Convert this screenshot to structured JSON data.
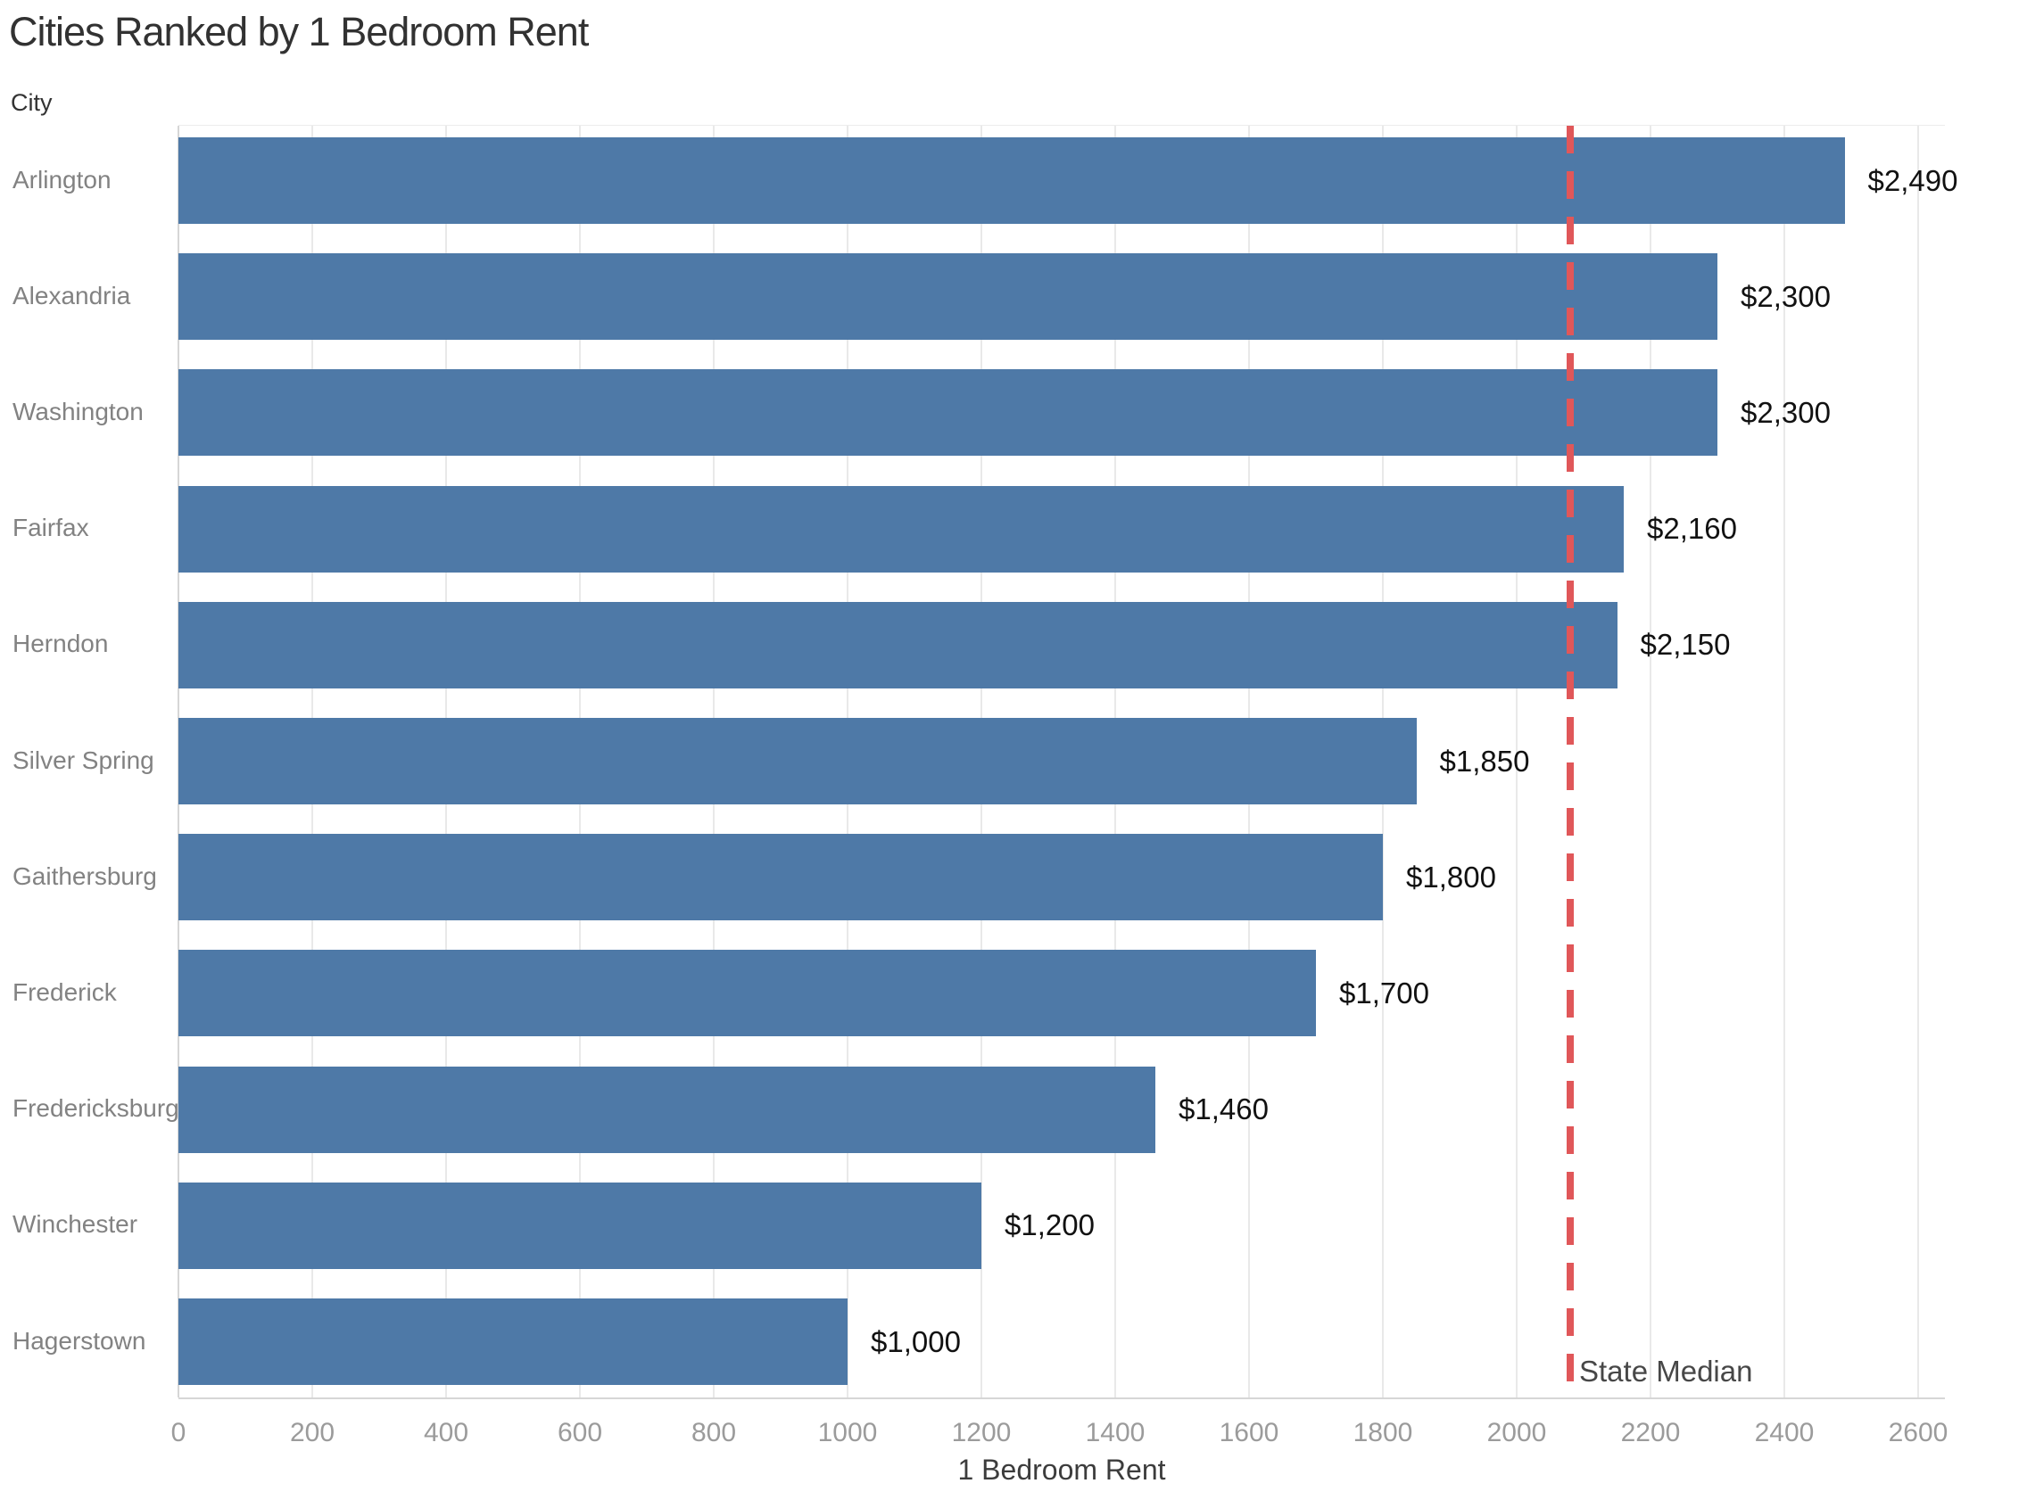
{
  "chart_data": {
    "type": "bar",
    "orientation": "horizontal",
    "title": "Cities Ranked by 1 Bedroom Rent",
    "ylabel": "City",
    "xlabel": "1 Bedroom Rent",
    "categories": [
      "Arlington",
      "Alexandria",
      "Washington",
      "Fairfax",
      "Herndon",
      "Silver Spring",
      "Gaithersburg",
      "Frederick",
      "Fredericksburg",
      "Winchester",
      "Hagerstown"
    ],
    "values": [
      2490,
      2300,
      2300,
      2160,
      2150,
      1850,
      1800,
      1700,
      1460,
      1200,
      1000
    ],
    "value_labels": [
      "$2,490",
      "$2,300",
      "$2,300",
      "$2,160",
      "$2,150",
      "$1,850",
      "$1,800",
      "$1,700",
      "$1,460",
      "$1,200",
      "$1,000"
    ],
    "xlim": [
      0,
      2600
    ],
    "xticks": [
      0,
      200,
      400,
      600,
      800,
      1000,
      1200,
      1400,
      1600,
      1800,
      2000,
      2200,
      2400,
      2600
    ],
    "grid": "vertical",
    "legend_position": "none",
    "bar_color": "#4e79a7",
    "reference_line": {
      "label": "State Median",
      "value": 2080,
      "style": "dashed",
      "color": "#e05759"
    }
  }
}
